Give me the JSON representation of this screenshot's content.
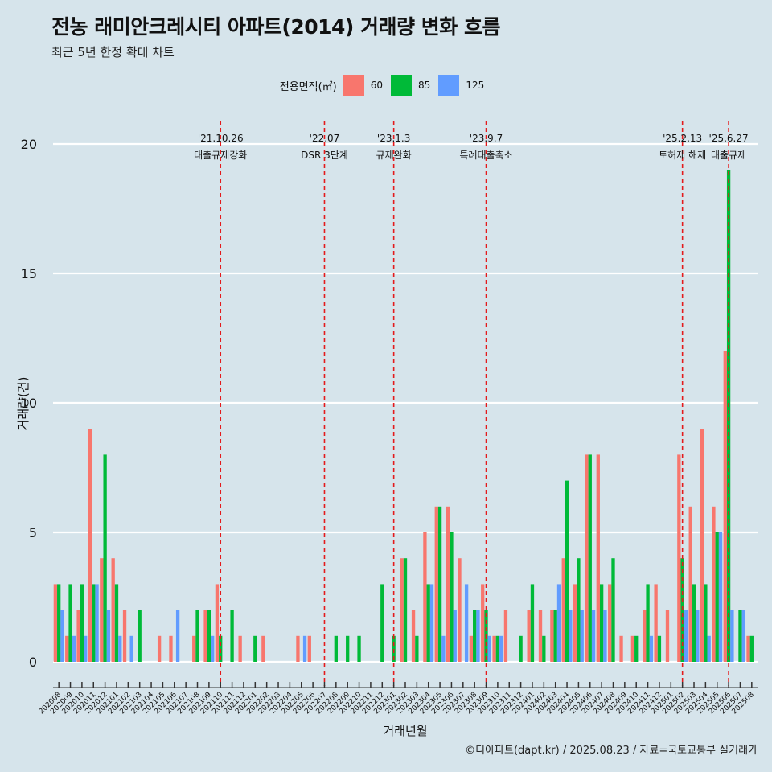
{
  "title": "전농 래미안크레시티 아파트(2014) 거래량 변화 흐름",
  "subtitle": "최근 5년 한정 확대 차트",
  "caption": "©디아파트(dapt.kr) / 2025.08.23 / 자료=국토교통부 실거래가",
  "chart_data": {
    "type": "bar",
    "xlabel": "거래년월",
    "ylabel": "거래량(건)",
    "ylim": [
      0,
      21
    ],
    "yticks": [
      0,
      5,
      10,
      15,
      20
    ],
    "grid": "horizontal",
    "legend": {
      "title": "전용면적(㎡)",
      "position": "top"
    },
    "categories": [
      "202008",
      "202009",
      "202010",
      "202011",
      "202012",
      "202101",
      "202102",
      "202103",
      "202104",
      "202105",
      "202106",
      "202107",
      "202108",
      "202109",
      "202110",
      "202111",
      "202112",
      "202201",
      "202202",
      "202203",
      "202204",
      "202205",
      "202206",
      "202207",
      "202208",
      "202209",
      "202210",
      "202211",
      "202212",
      "202301",
      "202302",
      "202303",
      "202304",
      "202305",
      "202306",
      "202307",
      "202308",
      "202309",
      "202310",
      "202311",
      "202312",
      "202401",
      "202402",
      "202403",
      "202404",
      "202405",
      "202406",
      "202407",
      "202408",
      "202409",
      "202410",
      "202411",
      "202412",
      "202501",
      "202502",
      "202503",
      "202504",
      "202505",
      "202506",
      "202507",
      "202508"
    ],
    "series": [
      {
        "name": "60",
        "color": "#f8766d",
        "values": [
          3,
          1,
          2,
          9,
          4,
          4,
          2,
          0,
          0,
          1,
          1,
          0,
          1,
          2,
          3,
          0,
          1,
          0,
          1,
          0,
          0,
          1,
          1,
          0,
          0,
          0,
          0,
          0,
          0,
          0,
          4,
          2,
          5,
          6,
          6,
          4,
          1,
          3,
          1,
          2,
          0,
          2,
          2,
          2,
          4,
          3,
          8,
          8,
          3,
          1,
          1,
          2,
          3,
          2,
          8,
          6,
          9,
          6,
          12,
          0,
          1
        ]
      },
      {
        "name": "85",
        "color": "#00ba38",
        "values": [
          3,
          3,
          3,
          3,
          8,
          3,
          0,
          2,
          0,
          0,
          0,
          0,
          2,
          2,
          1,
          2,
          0,
          1,
          0,
          0,
          0,
          0,
          0,
          0,
          1,
          1,
          1,
          0,
          3,
          1,
          4,
          1,
          3,
          6,
          5,
          0,
          2,
          2,
          1,
          0,
          1,
          3,
          1,
          2,
          7,
          4,
          8,
          3,
          4,
          0,
          1,
          3,
          1,
          0,
          4,
          3,
          3,
          5,
          19,
          2,
          1
        ]
      },
      {
        "name": "125",
        "color": "#619cff",
        "values": [
          2,
          1,
          1,
          3,
          2,
          1,
          1,
          0,
          0,
          0,
          2,
          0,
          0,
          1,
          0,
          0,
          0,
          0,
          0,
          0,
          0,
          1,
          0,
          0,
          0,
          0,
          0,
          0,
          0,
          0,
          0,
          0,
          3,
          1,
          2,
          3,
          2,
          1,
          1,
          0,
          0,
          0,
          0,
          3,
          2,
          2,
          2,
          2,
          0,
          0,
          0,
          1,
          0,
          0,
          2,
          2,
          1,
          5,
          2,
          2,
          0
        ]
      }
    ],
    "annotations": [
      {
        "category": "202110",
        "date": "'21.10.26",
        "label": "대출규제강화"
      },
      {
        "category": "202207",
        "date": "'22.07",
        "label": "DSR 3단계"
      },
      {
        "category": "202301",
        "date": "'23.1.3",
        "label": "규제완화"
      },
      {
        "category": "202309",
        "date": "'23.9.7",
        "label": "특례대출축소"
      },
      {
        "category": "202502",
        "date": "'25.2.13",
        "label": "토허제 해제"
      },
      {
        "category": "202506",
        "date": "'25.6.27",
        "label": "대출규제"
      }
    ]
  }
}
